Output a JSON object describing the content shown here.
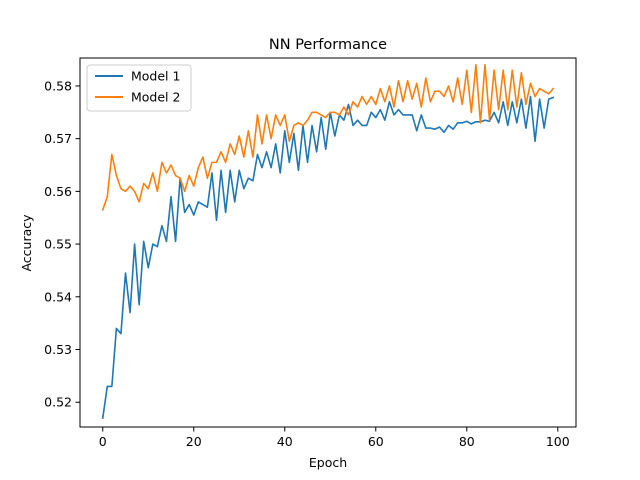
{
  "chart_data": {
    "type": "line",
    "title": "NN Performance",
    "xlabel": "Epoch",
    "ylabel": "Accuracy",
    "xlim": [
      -5,
      104
    ],
    "ylim": [
      0.5153,
      0.5853
    ],
    "xticks": [
      0,
      20,
      40,
      60,
      80,
      100
    ],
    "yticks": [
      0.52,
      0.53,
      0.54,
      0.55,
      0.56,
      0.57,
      0.58
    ],
    "xtick_labels": [
      "0",
      "20",
      "40",
      "60",
      "80",
      "100"
    ],
    "ytick_labels": [
      "0.52",
      "0.53",
      "0.54",
      "0.55",
      "0.56",
      "0.57",
      "0.58"
    ],
    "grid": false,
    "legend_position": "top-left",
    "x": [
      0,
      1,
      2,
      3,
      4,
      5,
      6,
      7,
      8,
      9,
      10,
      11,
      12,
      13,
      14,
      15,
      16,
      17,
      18,
      19,
      20,
      21,
      22,
      23,
      24,
      25,
      26,
      27,
      28,
      29,
      30,
      31,
      32,
      33,
      34,
      35,
      36,
      37,
      38,
      39,
      40,
      41,
      42,
      43,
      44,
      45,
      46,
      47,
      48,
      49,
      50,
      51,
      52,
      53,
      54,
      55,
      56,
      57,
      58,
      59,
      60,
      61,
      62,
      63,
      64,
      65,
      66,
      67,
      68,
      69,
      70,
      71,
      72,
      73,
      74,
      75,
      76,
      77,
      78,
      79,
      80,
      81,
      82,
      83,
      84,
      85,
      86,
      87,
      88,
      89,
      90,
      91,
      92,
      93,
      94,
      95,
      96,
      97,
      98,
      99
    ],
    "series": [
      {
        "name": "Model 1",
        "color": "#1f77b4",
        "values": [
          0.517,
          0.523,
          0.523,
          0.534,
          0.533,
          0.5445,
          0.537,
          0.55,
          0.5385,
          0.5505,
          0.5455,
          0.55,
          0.5495,
          0.5535,
          0.5505,
          0.559,
          0.5505,
          0.5625,
          0.556,
          0.5575,
          0.5555,
          0.558,
          0.5575,
          0.557,
          0.5635,
          0.5545,
          0.564,
          0.556,
          0.564,
          0.558,
          0.564,
          0.5605,
          0.5625,
          0.562,
          0.567,
          0.5645,
          0.5675,
          0.5645,
          0.569,
          0.5635,
          0.5715,
          0.5655,
          0.571,
          0.564,
          0.5725,
          0.5655,
          0.5725,
          0.5675,
          0.574,
          0.568,
          0.575,
          0.5705,
          0.5745,
          0.5735,
          0.5765,
          0.5725,
          0.5735,
          0.5725,
          0.5725,
          0.575,
          0.574,
          0.5755,
          0.5735,
          0.577,
          0.5745,
          0.5755,
          0.5745,
          0.5745,
          0.5745,
          0.5715,
          0.5745,
          0.572,
          0.572,
          0.5718,
          0.5722,
          0.5712,
          0.5725,
          0.5718,
          0.573,
          0.573,
          0.5733,
          0.5728,
          0.5732,
          0.5732,
          0.5735,
          0.5733,
          0.575,
          0.573,
          0.577,
          0.5725,
          0.577,
          0.573,
          0.5775,
          0.572,
          0.578,
          0.5695,
          0.5775,
          0.572,
          0.5775,
          0.5778
        ]
      },
      {
        "name": "Model 2",
        "color": "#ff7f0e",
        "values": [
          0.5565,
          0.559,
          0.567,
          0.563,
          0.5605,
          0.56,
          0.561,
          0.56,
          0.558,
          0.5615,
          0.5605,
          0.5635,
          0.56,
          0.5655,
          0.5635,
          0.565,
          0.563,
          0.5625,
          0.56,
          0.563,
          0.561,
          0.5645,
          0.5665,
          0.5625,
          0.5655,
          0.5655,
          0.5675,
          0.5655,
          0.569,
          0.567,
          0.5705,
          0.5665,
          0.5715,
          0.5665,
          0.5745,
          0.569,
          0.5745,
          0.57,
          0.5745,
          0.5725,
          0.5745,
          0.5695,
          0.5725,
          0.573,
          0.5725,
          0.5735,
          0.575,
          0.575,
          0.5745,
          0.574,
          0.575,
          0.575,
          0.5745,
          0.576,
          0.5745,
          0.577,
          0.576,
          0.578,
          0.5765,
          0.578,
          0.5765,
          0.5795,
          0.577,
          0.58,
          0.576,
          0.581,
          0.577,
          0.581,
          0.5775,
          0.5805,
          0.576,
          0.5815,
          0.577,
          0.579,
          0.579,
          0.578,
          0.58,
          0.577,
          0.5815,
          0.5765,
          0.583,
          0.575,
          0.584,
          0.573,
          0.584,
          0.5735,
          0.583,
          0.5755,
          0.583,
          0.5755,
          0.583,
          0.576,
          0.5825,
          0.5765,
          0.5805,
          0.578,
          0.5795,
          0.579,
          0.5785,
          0.5795
        ]
      }
    ]
  }
}
